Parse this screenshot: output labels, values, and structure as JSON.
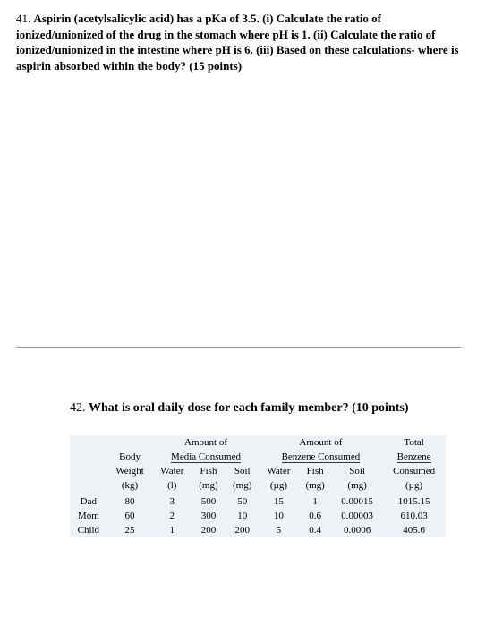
{
  "question41": {
    "number": "41. ",
    "text_bold_1": "Aspirin (acetylsalicylic acid) has a pKa of 3.5. (i) Calculate the ratio of ionized/unionized of the drug in the stomach where pH is 1. (ii) Calculate the ratio of ionized/unionized in the intestine where pH is 6. (iii) Based on these calculations- where is aspirin absorbed within the body?  (15 points)"
  },
  "question42": {
    "number": "42. ",
    "text": "What is oral daily dose for each family member? (10 points)"
  },
  "table": {
    "group_headers": {
      "col1": "",
      "group1_line1": "Amount of",
      "group1_line2": "Media Consumed",
      "group2_line1": "Amount of",
      "group2_line2": "Benzene Consumed",
      "group3_line1": "Total",
      "group3_line2": "Benzene"
    },
    "body_label_line1": "Body",
    "body_label_line2": "Weight",
    "sub_headers": {
      "water": "Water",
      "fish": "Fish",
      "soil": "Soil",
      "consumed": "Consumed"
    },
    "units": {
      "kg": "(kg)",
      "l": "(l)",
      "mg": "(mg)",
      "ug": "(µg)"
    },
    "rows": [
      {
        "label": "Dad",
        "weight": "80",
        "water_l": "3",
        "fish_mg": "500",
        "soil_mg": "50",
        "water_ug": "15",
        "fish_mg2": "1",
        "soil_mg2": "0.00015",
        "total": "1015.15"
      },
      {
        "label": "Mom",
        "weight": "60",
        "water_l": "2",
        "fish_mg": "300",
        "soil_mg": "10",
        "water_ug": "10",
        "fish_mg2": "0.6",
        "soil_mg2": "0.00003",
        "total": "610.03"
      },
      {
        "label": "Child",
        "weight": "25",
        "water_l": "1",
        "fish_mg": "200",
        "soil_mg": "200",
        "water_ug": "5",
        "fish_mg2": "0.4",
        "soil_mg2": "0.0006",
        "total": "405.6"
      }
    ]
  },
  "styling": {
    "background_color": "#ffffff",
    "table_bg": "#eef1f5",
    "text_color": "#000000",
    "divider_color": "#999999",
    "body_font": "Times New Roman",
    "q41_fontsize": 13,
    "q42_fontsize": 14,
    "table_fontsize": 11
  }
}
